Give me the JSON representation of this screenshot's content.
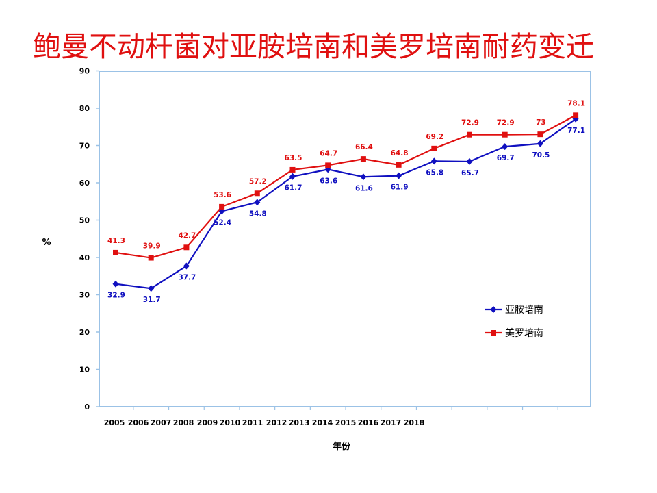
{
  "title": "鲍曼不动杆菌对亚胺培南和美罗培南耐药变迁",
  "colors": {
    "title": "#e01010",
    "plot_border": "#9bc2e6",
    "series_1": "#1010c0",
    "series_2": "#e01010"
  },
  "chart_data": {
    "type": "line",
    "title": "鲍曼不动杆菌对亚胺培南和美罗培南耐药变迁",
    "xlabel": "年份",
    "ylabel": "%",
    "ylim": [
      0,
      90
    ],
    "yticks": [
      0,
      10,
      20,
      30,
      40,
      50,
      60,
      70,
      80,
      90
    ],
    "x_tick_labels": [
      "2005",
      "2006",
      "2007",
      "2008",
      "2009",
      "2010",
      "2011",
      "2012",
      "2013",
      "2014",
      "2015",
      "2016",
      "2017",
      "2018"
    ],
    "legend_position": "right",
    "grid": false,
    "series": [
      {
        "name": "亚胺培南",
        "marker": "diamond",
        "color": "#1010c0",
        "values": [
          32.9,
          31.7,
          37.7,
          52.4,
          54.8,
          61.7,
          63.6,
          61.6,
          61.9,
          65.8,
          65.7,
          69.7,
          70.5,
          77.1
        ]
      },
      {
        "name": "美罗培南",
        "marker": "square",
        "color": "#e01010",
        "values": [
          41.3,
          39.9,
          42.7,
          53.6,
          57.2,
          63.5,
          64.7,
          66.4,
          64.8,
          69.2,
          72.9,
          72.9,
          73,
          78.1
        ]
      }
    ]
  }
}
